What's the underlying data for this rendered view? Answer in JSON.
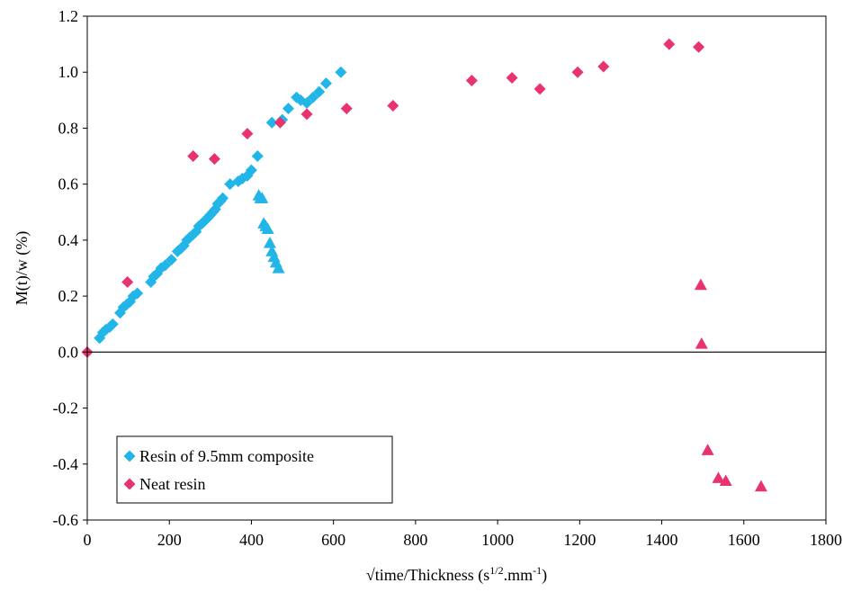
{
  "chart_data": {
    "type": "scatter",
    "xlabel": "√time/Thickness (s",
    "xlabel_sup1": "1/2",
    "xlabel_mid": ".mm",
    "xlabel_sup2": "-1",
    "xlabel_end": ")",
    "ylabel": "M(t)/w (%)",
    "xlim": [
      0,
      1800
    ],
    "ylim": [
      -0.6,
      1.2
    ],
    "x_ticks": [
      0,
      200,
      400,
      600,
      800,
      1000,
      1200,
      1400,
      1600,
      1800
    ],
    "x_tick_labels": [
      "0",
      "200",
      "400",
      "600",
      "800",
      "1000",
      "1200",
      "1400",
      "1600",
      "1800"
    ],
    "y_ticks": [
      -0.6,
      -0.4,
      -0.2,
      0.0,
      0.2,
      0.4,
      0.6,
      0.8,
      1.0,
      1.2
    ],
    "y_tick_labels": [
      "-0.6",
      "-0.4",
      "-0.2",
      "0.0",
      "0.2",
      "0.4",
      "0.6",
      "0.8",
      "1.0",
      "1.2"
    ],
    "zero_line": true,
    "grid": false,
    "legend_position": "bottom-left",
    "series": [
      {
        "name": "Resin of 9.5mm composite",
        "marker": "diamond",
        "color": "#22b5e8",
        "points": [
          [
            30,
            0.05
          ],
          [
            38,
            0.07
          ],
          [
            45,
            0.08
          ],
          [
            55,
            0.09
          ],
          [
            62,
            0.1
          ],
          [
            80,
            0.14
          ],
          [
            88,
            0.16
          ],
          [
            96,
            0.17
          ],
          [
            104,
            0.18
          ],
          [
            112,
            0.2
          ],
          [
            122,
            0.21
          ],
          [
            155,
            0.25
          ],
          [
            162,
            0.27
          ],
          [
            170,
            0.28
          ],
          [
            180,
            0.3
          ],
          [
            190,
            0.31
          ],
          [
            205,
            0.33
          ],
          [
            220,
            0.36
          ],
          [
            228,
            0.37
          ],
          [
            235,
            0.38
          ],
          [
            243,
            0.4
          ],
          [
            250,
            0.41
          ],
          [
            258,
            0.42
          ],
          [
            265,
            0.43
          ],
          [
            272,
            0.45
          ],
          [
            280,
            0.46
          ],
          [
            287,
            0.47
          ],
          [
            294,
            0.48
          ],
          [
            300,
            0.49
          ],
          [
            306,
            0.5
          ],
          [
            312,
            0.51
          ],
          [
            318,
            0.53
          ],
          [
            325,
            0.54
          ],
          [
            330,
            0.55
          ],
          [
            348,
            0.6
          ],
          [
            368,
            0.61
          ],
          [
            378,
            0.62
          ],
          [
            390,
            0.63
          ],
          [
            400,
            0.65
          ],
          [
            415,
            0.7
          ],
          [
            450,
            0.82
          ],
          [
            475,
            0.83
          ],
          [
            490,
            0.87
          ],
          [
            510,
            0.91
          ],
          [
            520,
            0.9
          ],
          [
            535,
            0.89
          ],
          [
            550,
            0.91
          ],
          [
            565,
            0.93
          ],
          [
            582,
            0.96
          ],
          [
            618,
            1.0
          ]
        ]
      },
      {
        "name": "Neat resin",
        "marker": "diamond",
        "color": "#e8336e",
        "points": [
          [
            0,
            0.0
          ],
          [
            98,
            0.25
          ],
          [
            258,
            0.7
          ],
          [
            310,
            0.69
          ],
          [
            390,
            0.78
          ],
          [
            470,
            0.82
          ],
          [
            535,
            0.85
          ],
          [
            632,
            0.87
          ],
          [
            745,
            0.88
          ],
          [
            937,
            0.97
          ],
          [
            1035,
            0.98
          ],
          [
            1103,
            0.94
          ],
          [
            1195,
            1.0
          ],
          [
            1258,
            1.02
          ],
          [
            1418,
            1.1
          ],
          [
            1490,
            1.09
          ]
        ]
      },
      {
        "name": "",
        "marker": "triangle",
        "color": "#22b5e8",
        "points": [
          [
            418,
            0.56
          ],
          [
            422,
            0.55
          ],
          [
            426,
            0.55
          ],
          [
            430,
            0.46
          ],
          [
            435,
            0.45
          ],
          [
            440,
            0.44
          ],
          [
            445,
            0.39
          ],
          [
            450,
            0.36
          ],
          [
            455,
            0.34
          ],
          [
            460,
            0.32
          ],
          [
            466,
            0.3
          ]
        ]
      },
      {
        "name": "",
        "marker": "triangle",
        "color": "#e8336e",
        "points": [
          [
            1495,
            0.24
          ],
          [
            1497,
            0.03
          ],
          [
            1512,
            -0.35
          ],
          [
            1538,
            -0.45
          ],
          [
            1556,
            -0.46
          ],
          [
            1642,
            -0.48
          ]
        ]
      }
    ]
  }
}
